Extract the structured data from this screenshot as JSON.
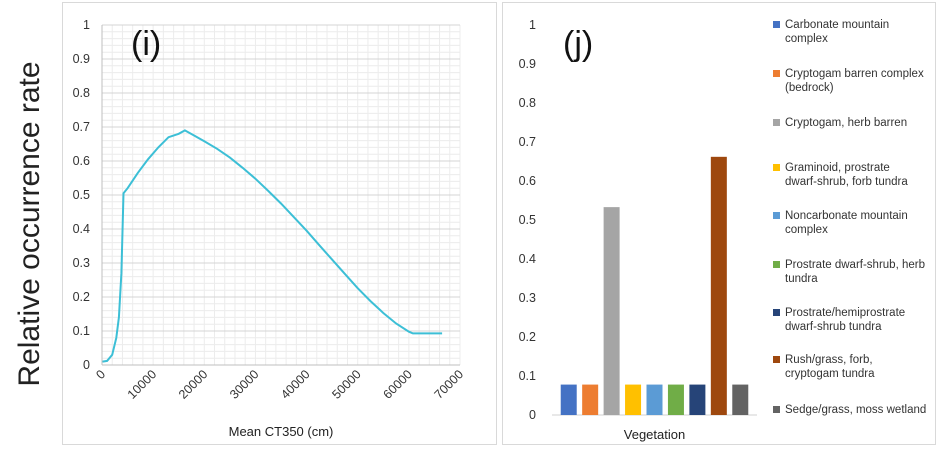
{
  "figure": {
    "shared_ylabel": "Relative occurrence rate"
  },
  "chart_data": [
    {
      "type": "line",
      "panel_label": "(i)",
      "xlabel": "Mean CT350 (cm)",
      "ylabel": "Relative occurrence rate",
      "xlim": [
        0,
        70000
      ],
      "ylim": [
        0,
        1
      ],
      "x_ticks": [
        "0",
        "10000",
        "20000",
        "30000",
        "40000",
        "50000",
        "60000",
        "70000"
      ],
      "y_ticks": [
        "0",
        "0.1",
        "0.2",
        "0.3",
        "0.4",
        "0.5",
        "0.6",
        "0.7",
        "0.8",
        "0.9",
        "1"
      ],
      "grid": true,
      "line_color": "#3cbfd6",
      "series": [
        {
          "x": [
            100,
            1000,
            2000,
            2800,
            3300,
            3800,
            4200,
            5000,
            7000,
            9000,
            11000,
            13000,
            15000,
            16200,
            18000,
            20000,
            22500,
            25000,
            27500,
            30000,
            32500,
            35000,
            37500,
            40000,
            42500,
            45000,
            47500,
            50000,
            52500,
            55000,
            57500,
            60000,
            60800,
            63000,
            66500
          ],
          "y": [
            0.01,
            0.012,
            0.03,
            0.08,
            0.14,
            0.27,
            0.505,
            0.52,
            0.565,
            0.605,
            0.64,
            0.67,
            0.68,
            0.69,
            0.675,
            0.658,
            0.636,
            0.61,
            0.58,
            0.548,
            0.512,
            0.475,
            0.435,
            0.395,
            0.352,
            0.31,
            0.268,
            0.226,
            0.188,
            0.153,
            0.122,
            0.098,
            0.093,
            0.093,
            0.093
          ]
        }
      ]
    },
    {
      "type": "bar",
      "panel_label": "(j)",
      "xlabel": "Vegetation",
      "ylim": [
        0,
        1
      ],
      "y_ticks": [
        "0",
        "0.1",
        "0.2",
        "0.3",
        "0.4",
        "0.5",
        "0.6",
        "0.7",
        "0.8",
        "0.9",
        "1"
      ],
      "grid": false,
      "legend_position": "right",
      "categories": [
        "Carbonate mountain complex",
        "Cryptogam barren complex (bedrock)",
        "Cryptogam, herb barren",
        "Graminoid, prostrate dwarf-shrub, forb tundra",
        "Noncarbonate mountain complex",
        "Prostrate dwarf-shrub, herb tundra",
        "Prostrate/hemiprostrate dwarf-shrub tundra",
        "Rush/grass, forb, cryptogam tundra",
        "Sedge/grass, moss wetland"
      ],
      "values": [
        0.078,
        0.078,
        0.533,
        0.078,
        0.078,
        0.078,
        0.078,
        0.662,
        0.078
      ],
      "colors": [
        "#4472c4",
        "#ed7d31",
        "#a5a5a5",
        "#ffc000",
        "#5b9bd5",
        "#70ad47",
        "#264478",
        "#9e480e",
        "#636363"
      ],
      "legend": [
        {
          "lines": [
            "Carbonate mountain",
            "complex"
          ]
        },
        {
          "lines": [
            "Cryptogam barren complex",
            "(bedrock)"
          ]
        },
        {
          "lines": [
            "Cryptogam, herb barren"
          ]
        },
        {
          "lines": [
            "Graminoid, prostrate",
            "dwarf-shrub, forb tundra"
          ]
        },
        {
          "lines": [
            "Noncarbonate mountain",
            "complex"
          ]
        },
        {
          "lines": [
            "Prostrate dwarf-shrub, herb",
            "tundra"
          ]
        },
        {
          "lines": [
            "Prostrate/hemiprostrate",
            "dwarf-shrub tundra"
          ]
        },
        {
          "lines": [
            "Rush/grass, forb,",
            "cryptogam tundra"
          ]
        },
        {
          "lines": [
            "Sedge/grass, moss wetland"
          ]
        }
      ]
    }
  ]
}
